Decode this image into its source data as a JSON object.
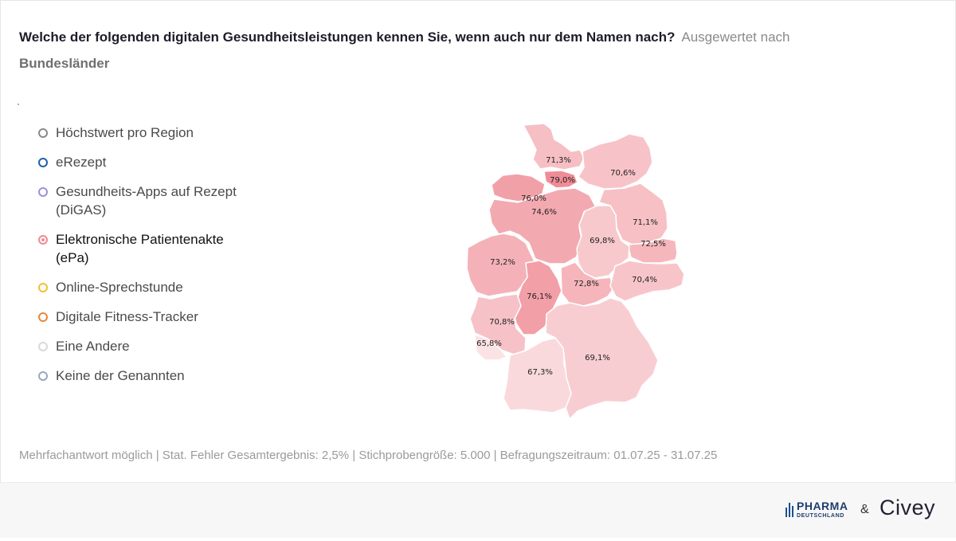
{
  "title": {
    "question": "Welche der folgenden digitalen Gesundheitsleistungen kennen Sie, wenn auch nur dem Namen nach?",
    "subtitle_part1": "Ausgewertet nach",
    "subtitle_part2": "Bundesländer"
  },
  "legend": {
    "items": [
      {
        "label": "Höchstwert pro Region",
        "color": "#8a8a8a",
        "active": false
      },
      {
        "label": "eRezept",
        "color": "#1f5fa8",
        "active": false
      },
      {
        "label": "Gesundheits-Apps auf Rezept (DiGAS)",
        "color": "#a08fd6",
        "active": false
      },
      {
        "label": "Elektronische Patientenakte (ePa)",
        "color": "#ef8c95",
        "active": true
      },
      {
        "label": "Online-Sprechstunde",
        "color": "#f2c12e",
        "active": false
      },
      {
        "label": "Digitale Fitness-Tracker",
        "color": "#e8883a",
        "active": false
      },
      {
        "label": "Eine Andere",
        "color": "#d9d9d9",
        "active": false
      },
      {
        "label": "Keine der Genannten",
        "color": "#9aa7bd",
        "active": false
      }
    ]
  },
  "map": {
    "selected_series": "Elektronische Patientenakte (ePa)",
    "regions": [
      {
        "name": "Schleswig-Holstein",
        "label": "71,3%",
        "value": 71.3
      },
      {
        "name": "Hamburg",
        "label": "79,0%",
        "value": 79.0
      },
      {
        "name": "Mecklenburg-Vorpommern",
        "label": "70,6%",
        "value": 70.6
      },
      {
        "name": "Bremen",
        "label": "76,0%",
        "value": 76.0
      },
      {
        "name": "Niedersachsen",
        "label": "74,6%",
        "value": 74.6
      },
      {
        "name": "Brandenburg",
        "label": "71,1%",
        "value": 71.1
      },
      {
        "name": "Berlin",
        "label": "72,5%",
        "value": 72.5
      },
      {
        "name": "Sachsen-Anhalt",
        "label": "69,8%",
        "value": 69.8
      },
      {
        "name": "Nordrhein-Westfalen",
        "label": "73,2%",
        "value": 73.2
      },
      {
        "name": "Hessen",
        "label": "76,1%",
        "value": 76.1
      },
      {
        "name": "Thüringen",
        "label": "72,8%",
        "value": 72.8
      },
      {
        "name": "Sachsen",
        "label": "70,4%",
        "value": 70.4
      },
      {
        "name": "Rheinland-Pfalz",
        "label": "70,8%",
        "value": 70.8
      },
      {
        "name": "Saarland",
        "label": "65,8%",
        "value": 65.8
      },
      {
        "name": "Baden-Württemberg",
        "label": "67,3%",
        "value": 67.3
      },
      {
        "name": "Bayern",
        "label": "69,1%",
        "value": 69.1
      }
    ],
    "color_scale": {
      "min_color": "#fbe3e5",
      "max_color": "#ef8c95"
    }
  },
  "footnote": "Mehrfachantwort möglich | Stat. Fehler Gesamtergebnis: 2,5% | Stichprobengröße: 5.000 | Befragungszeitraum: 01.07.25 - 31.07.25",
  "footer": {
    "logo_pharma_line1": "PHARMA",
    "logo_pharma_line2": "DEUTSCHLAND",
    "ampersand": "&",
    "logo_civey": "Civey"
  }
}
